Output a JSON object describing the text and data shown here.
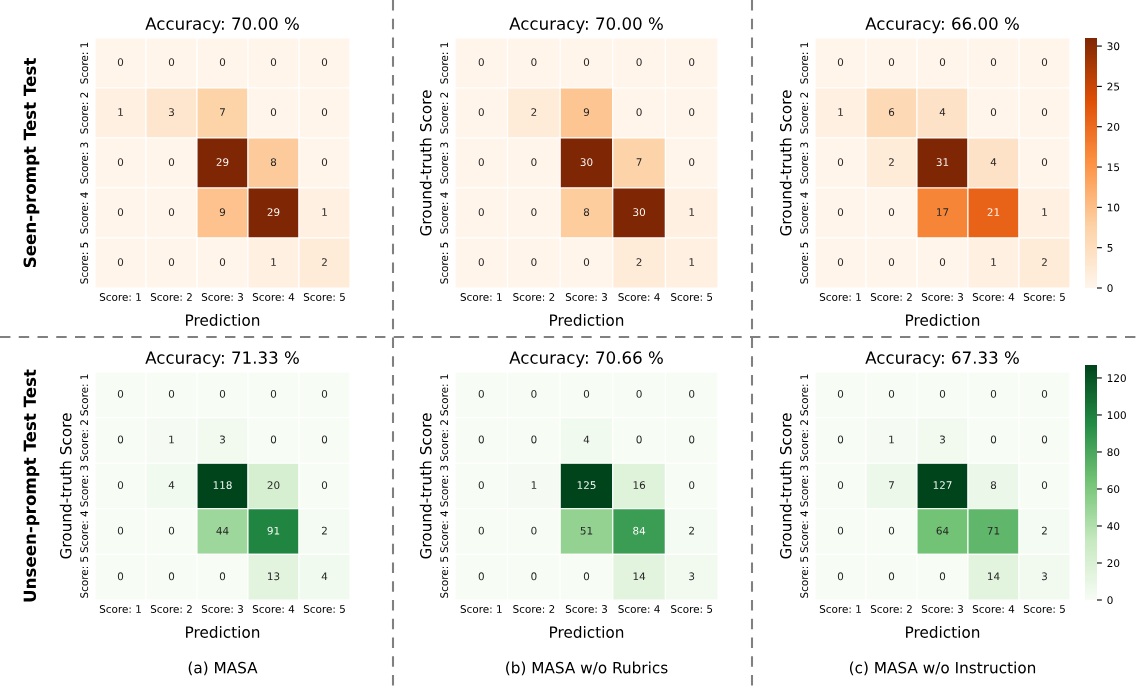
{
  "chart_data": [
    {
      "type": "heatmap",
      "title": "Accuracy: 70.00 %",
      "xlabel": "Prediction",
      "annotations": [
        "Seen-prompt Test Test"
      ],
      "colors": [
        "#fff5eb",
        "#fdd1a5",
        "#fd9243",
        "#df4f05",
        "#7f2704"
      ],
      "categories": [
        "Score: 1",
        "Score: 2",
        "Score: 3",
        "Score: 4",
        "Score: 5"
      ],
      "y_categories": [
        "Score: 1",
        "Score: 2",
        "Score: 3",
        "Score: 4",
        "Score: 5"
      ],
      "cells": [
        [
          0,
          0,
          0,
          0,
          0
        ],
        [
          1,
          3,
          7,
          0,
          0
        ],
        [
          0,
          0,
          29,
          8,
          0
        ],
        [
          0,
          0,
          9,
          29,
          1
        ],
        [
          0,
          0,
          0,
          1,
          2
        ]
      ],
      "data_labels": true
    },
    {
      "type": "heatmap",
      "title": "Accuracy: 70.00 %",
      "xlabel": "Prediction",
      "ylabel": "Ground-truth Score",
      "colors": [
        "#fff5eb",
        "#fdd1a5",
        "#fd9243",
        "#df4f05",
        "#7f2704"
      ],
      "categories": [
        "Score: 1",
        "Score: 2",
        "Score: 3",
        "Score: 4",
        "Score: 5"
      ],
      "y_categories": [
        "Score: 1",
        "Score: 2",
        "Score: 3",
        "Score: 4",
        "Score: 5"
      ],
      "cells": [
        [
          0,
          0,
          0,
          0,
          0
        ],
        [
          0,
          2,
          9,
          0,
          0
        ],
        [
          0,
          0,
          30,
          7,
          0
        ],
        [
          0,
          0,
          8,
          30,
          1
        ],
        [
          0,
          0,
          0,
          2,
          1
        ]
      ],
      "data_labels": true
    },
    {
      "type": "heatmap",
      "title": "Accuracy: 66.00 %",
      "xlabel": "Prediction",
      "ylabel": "Ground-truth Score",
      "colors": [
        "#fff5eb",
        "#fdd1a5",
        "#fd9243",
        "#df4f05",
        "#7f2704"
      ],
      "categories": [
        "Score: 1",
        "Score: 2",
        "Score: 3",
        "Score: 4",
        "Score: 5"
      ],
      "y_categories": [
        "Score: 1",
        "Score: 2",
        "Score: 3",
        "Score: 4",
        "Score: 5"
      ],
      "cells": [
        [
          0,
          0,
          0,
          0,
          0
        ],
        [
          1,
          6,
          4,
          0,
          0
        ],
        [
          0,
          2,
          31,
          4,
          0
        ],
        [
          0,
          0,
          17,
          21,
          1
        ],
        [
          0,
          0,
          0,
          1,
          2
        ]
      ],
      "data_labels": true,
      "clim": [
        0,
        31
      ],
      "cticks": [
        0,
        5,
        10,
        15,
        20,
        25,
        30
      ]
    },
    {
      "type": "heatmap",
      "title": "Accuracy: 71.33 %",
      "xlabel": "Prediction",
      "ylabel": "Ground-truth Score",
      "annotations": [
        "Unseen-prompt Test Test",
        "(a) MASA"
      ],
      "colors": [
        "#f7fcf5",
        "#c7e9c0",
        "#74c476",
        "#238b45",
        "#00441b"
      ],
      "categories": [
        "Score: 1",
        "Score: 2",
        "Score: 3",
        "Score: 4",
        "Score: 5"
      ],
      "y_categories": [
        "Score: 1",
        "Score: 2",
        "Score: 3",
        "Score: 4",
        "Score: 5"
      ],
      "cells": [
        [
          0,
          0,
          0,
          0,
          0
        ],
        [
          0,
          1,
          3,
          0,
          0
        ],
        [
          0,
          4,
          118,
          20,
          0
        ],
        [
          0,
          0,
          44,
          91,
          2
        ],
        [
          0,
          0,
          0,
          13,
          4
        ]
      ],
      "data_labels": true
    },
    {
      "type": "heatmap",
      "title": "Accuracy: 70.66 %",
      "xlabel": "Prediction",
      "ylabel": "Ground-truth Score",
      "annotations": [
        "(b) MASA w/o Rubrics"
      ],
      "colors": [
        "#f7fcf5",
        "#c7e9c0",
        "#74c476",
        "#238b45",
        "#00441b"
      ],
      "categories": [
        "Score: 1",
        "Score: 2",
        "Score: 3",
        "Score: 4",
        "Score: 5"
      ],
      "y_categories": [
        "Score: 1",
        "Score: 2",
        "Score: 3",
        "Score: 4",
        "Score: 5"
      ],
      "cells": [
        [
          0,
          0,
          0,
          0,
          0
        ],
        [
          0,
          0,
          4,
          0,
          0
        ],
        [
          0,
          1,
          125,
          16,
          0
        ],
        [
          0,
          0,
          51,
          84,
          2
        ],
        [
          0,
          0,
          0,
          14,
          3
        ]
      ],
      "data_labels": true
    },
    {
      "type": "heatmap",
      "title": "Accuracy: 67.33 %",
      "xlabel": "Prediction",
      "ylabel": "Ground-truth Score",
      "annotations": [
        "(c) MASA w/o Instruction"
      ],
      "colors": [
        "#f7fcf5",
        "#c7e9c0",
        "#74c476",
        "#238b45",
        "#00441b"
      ],
      "categories": [
        "Score: 1",
        "Score: 2",
        "Score: 3",
        "Score: 4",
        "Score: 5"
      ],
      "y_categories": [
        "Score: 1",
        "Score: 2",
        "Score: 3",
        "Score: 4",
        "Score: 5"
      ],
      "cells": [
        [
          0,
          0,
          0,
          0,
          0
        ],
        [
          0,
          1,
          3,
          0,
          0
        ],
        [
          0,
          7,
          127,
          8,
          0
        ],
        [
          0,
          0,
          64,
          71,
          2
        ],
        [
          0,
          0,
          0,
          14,
          3
        ]
      ],
      "data_labels": true,
      "clim": [
        0,
        127
      ],
      "cticks": [
        0,
        20,
        40,
        60,
        80,
        100,
        120
      ]
    }
  ]
}
